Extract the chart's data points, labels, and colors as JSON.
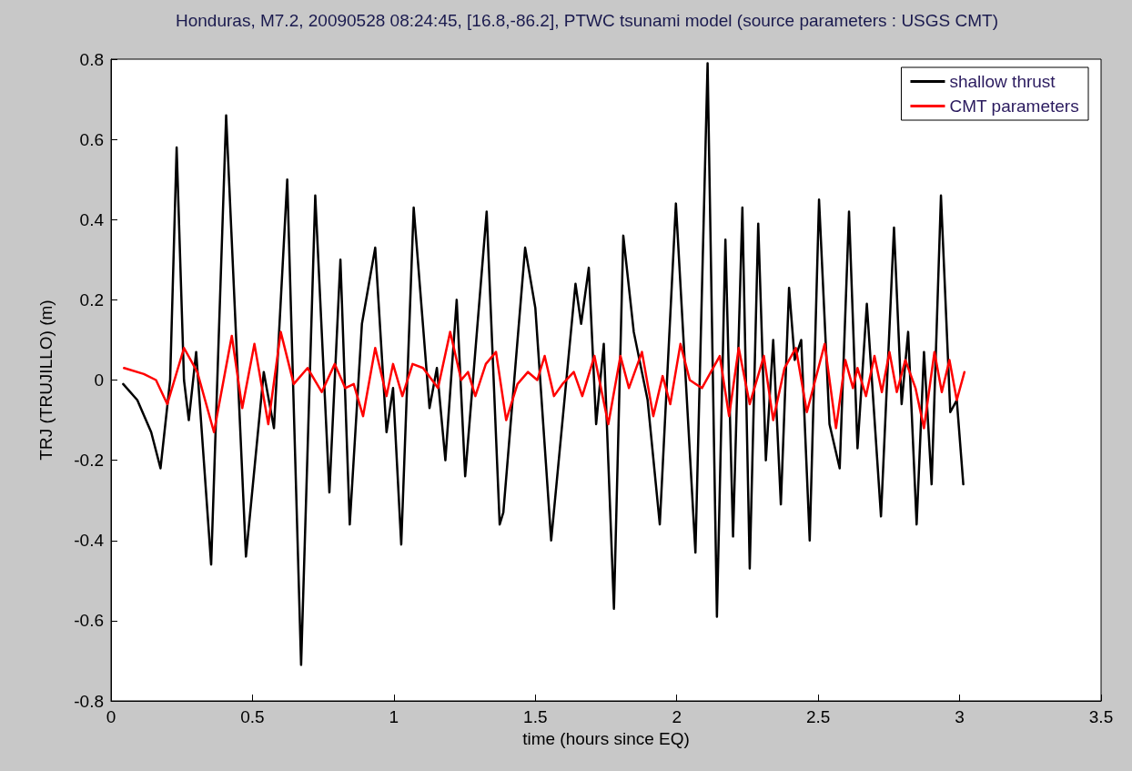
{
  "chart_data": {
    "type": "line",
    "title": "Honduras, M7.2, 20090528 08:24:45, [16.8,-86.2], PTWC tsunami model (source parameters : USGS CMT)",
    "xlabel": "time (hours since EQ)",
    "ylabel": "TRJ (TRUJILLO) (m)",
    "xlim": [
      0,
      3.5
    ],
    "xticks": [
      0,
      0.5,
      1,
      1.5,
      2,
      2.5,
      3,
      3.5
    ],
    "ylim": [
      -0.8,
      0.8
    ],
    "yticks": [
      -0.8,
      -0.6,
      -0.4,
      -0.2,
      0,
      0.2,
      0.4,
      0.6,
      0.8
    ],
    "grid": false,
    "legend": "top right",
    "line_style": "solid",
    "series": [
      {
        "name": "shallow thrust",
        "color": "#000000",
        "x": [
          0.043,
          0.093,
          0.142,
          0.175,
          0.209,
          0.232,
          0.258,
          0.275,
          0.301,
          0.354,
          0.407,
          0.477,
          0.54,
          0.576,
          0.623,
          0.672,
          0.722,
          0.772,
          0.811,
          0.844,
          0.887,
          0.934,
          0.974,
          0.997,
          1.026,
          1.07,
          1.126,
          1.152,
          1.182,
          1.222,
          1.252,
          1.328,
          1.374,
          1.387,
          1.464,
          1.5,
          1.556,
          1.642,
          1.662,
          1.689,
          1.715,
          1.742,
          1.778,
          1.811,
          1.848,
          1.897,
          1.94,
          1.997,
          2.066,
          2.109,
          2.142,
          2.172,
          2.199,
          2.232,
          2.258,
          2.288,
          2.315,
          2.341,
          2.368,
          2.397,
          2.417,
          2.44,
          2.47,
          2.503,
          2.54,
          2.576,
          2.609,
          2.639,
          2.672,
          2.722,
          2.768,
          2.795,
          2.818,
          2.848,
          2.874,
          2.901,
          2.934,
          2.967,
          2.99,
          3.013
        ],
        "values": [
          -0.01,
          -0.05,
          -0.13,
          -0.22,
          0.0,
          0.58,
          0.0,
          -0.1,
          0.07,
          -0.46,
          0.66,
          -0.44,
          0.02,
          -0.12,
          0.5,
          -0.71,
          0.46,
          -0.28,
          0.3,
          -0.36,
          0.14,
          0.33,
          -0.13,
          -0.02,
          -0.41,
          0.43,
          -0.07,
          0.03,
          -0.2,
          0.2,
          -0.24,
          0.42,
          -0.36,
          -0.33,
          0.33,
          0.18,
          -0.4,
          0.24,
          0.14,
          0.28,
          -0.11,
          0.09,
          -0.57,
          0.36,
          0.12,
          -0.05,
          -0.36,
          0.44,
          -0.43,
          0.79,
          -0.59,
          0.35,
          -0.39,
          0.43,
          -0.47,
          0.39,
          -0.2,
          0.1,
          -0.31,
          0.23,
          0.05,
          0.1,
          -0.4,
          0.45,
          -0.11,
          -0.22,
          0.42,
          -0.17,
          0.19,
          -0.34,
          0.38,
          -0.06,
          0.12,
          -0.36,
          0.07,
          -0.26,
          0.46,
          -0.08,
          -0.05,
          -0.26
        ]
      },
      {
        "name": "CMT parameters",
        "color": "#ff0000",
        "x": [
          0.046,
          0.116,
          0.159,
          0.199,
          0.258,
          0.305,
          0.364,
          0.427,
          0.464,
          0.507,
          0.556,
          0.6,
          0.646,
          0.695,
          0.745,
          0.791,
          0.828,
          0.858,
          0.891,
          0.934,
          0.974,
          0.997,
          1.03,
          1.066,
          1.103,
          1.156,
          1.199,
          1.238,
          1.262,
          1.288,
          1.325,
          1.361,
          1.397,
          1.437,
          1.474,
          1.507,
          1.533,
          1.566,
          1.596,
          1.636,
          1.666,
          1.709,
          1.758,
          1.801,
          1.831,
          1.877,
          1.917,
          1.95,
          1.977,
          2.013,
          2.046,
          2.089,
          2.152,
          2.185,
          2.219,
          2.258,
          2.308,
          2.341,
          2.381,
          2.421,
          2.46,
          2.523,
          2.563,
          2.596,
          2.623,
          2.639,
          2.669,
          2.699,
          2.725,
          2.752,
          2.778,
          2.808,
          2.844,
          2.874,
          2.911,
          2.937,
          2.964,
          2.99,
          3.017
        ],
        "values": [
          0.03,
          0.015,
          0.0,
          -0.06,
          0.08,
          0.02,
          -0.13,
          0.11,
          -0.07,
          0.09,
          -0.11,
          0.12,
          -0.01,
          0.03,
          -0.03,
          0.04,
          -0.02,
          -0.01,
          -0.09,
          0.08,
          -0.04,
          0.04,
          -0.04,
          0.04,
          0.03,
          -0.02,
          0.12,
          0.0,
          0.02,
          -0.04,
          0.04,
          0.07,
          -0.1,
          -0.01,
          0.02,
          0.0,
          0.06,
          -0.04,
          -0.01,
          0.02,
          -0.04,
          0.06,
          -0.11,
          0.06,
          -0.02,
          0.07,
          -0.09,
          0.01,
          -0.06,
          0.09,
          0.0,
          -0.02,
          0.06,
          -0.09,
          0.08,
          -0.06,
          0.06,
          -0.1,
          0.03,
          0.08,
          -0.08,
          0.09,
          -0.12,
          0.05,
          -0.02,
          0.03,
          -0.04,
          0.06,
          -0.03,
          0.07,
          -0.03,
          0.05,
          -0.02,
          -0.12,
          0.07,
          -0.03,
          0.05,
          -0.05,
          0.02
        ]
      }
    ]
  }
}
